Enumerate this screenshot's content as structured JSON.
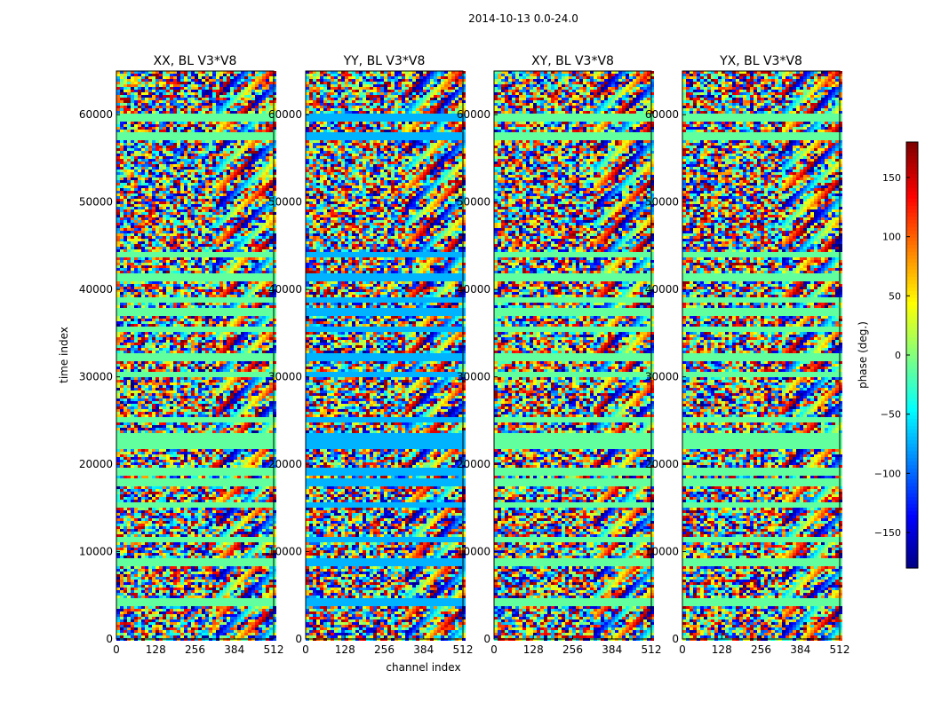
{
  "figure": {
    "suptitle": "2014-10-13 0.0-24.0"
  },
  "chart_data": [
    {
      "type": "heatmap",
      "title": "XX, BL V3*V8",
      "xlabel": "",
      "ylabel": "time index",
      "xlim": [
        0,
        512
      ],
      "ylim": [
        0,
        65000
      ],
      "xticks": [
        0,
        128,
        256,
        384,
        512
      ],
      "yticks": [
        0,
        10000,
        20000,
        30000,
        40000,
        50000,
        60000
      ],
      "colormap": "jet",
      "value_range": [
        -180,
        180
      ],
      "grid": false
    },
    {
      "type": "heatmap",
      "title": "YY, BL V3*V8",
      "xlabel": "channel index",
      "ylabel": "",
      "xlim": [
        0,
        512
      ],
      "ylim": [
        0,
        65000
      ],
      "xticks": [
        0,
        128,
        256,
        384,
        512
      ],
      "yticks": [
        0,
        10000,
        20000,
        30000,
        40000,
        50000,
        60000
      ],
      "colormap": "jet",
      "value_range": [
        -180,
        180
      ],
      "grid": false
    },
    {
      "type": "heatmap",
      "title": "XY, BL V3*V8",
      "xlabel": "",
      "ylabel": "",
      "xlim": [
        0,
        512
      ],
      "ylim": [
        0,
        65000
      ],
      "xticks": [
        0,
        128,
        256,
        384,
        512
      ],
      "yticks": [
        0,
        10000,
        20000,
        30000,
        40000,
        50000,
        60000
      ],
      "colormap": "jet",
      "value_range": [
        -180,
        180
      ],
      "grid": false
    },
    {
      "type": "heatmap",
      "title": "YX, BL V3*V8",
      "xlabel": "",
      "ylabel": "",
      "xlim": [
        0,
        512
      ],
      "ylim": [
        0,
        65000
      ],
      "xticks": [
        0,
        128,
        256,
        384,
        512
      ],
      "yticks": [
        0,
        10000,
        20000,
        30000,
        40000,
        50000,
        60000
      ],
      "colormap": "jet",
      "value_range": [
        -180,
        180
      ],
      "grid": false
    }
  ],
  "colorbar": {
    "label": "phase (deg.)",
    "range": [
      -180,
      180
    ],
    "ticks": [
      150,
      100,
      50,
      0,
      -50,
      -100,
      -150
    ],
    "tick_labels": [
      "150",
      "100",
      "50",
      "0",
      "−50",
      "−100",
      "−150"
    ],
    "colormap": "jet"
  }
}
